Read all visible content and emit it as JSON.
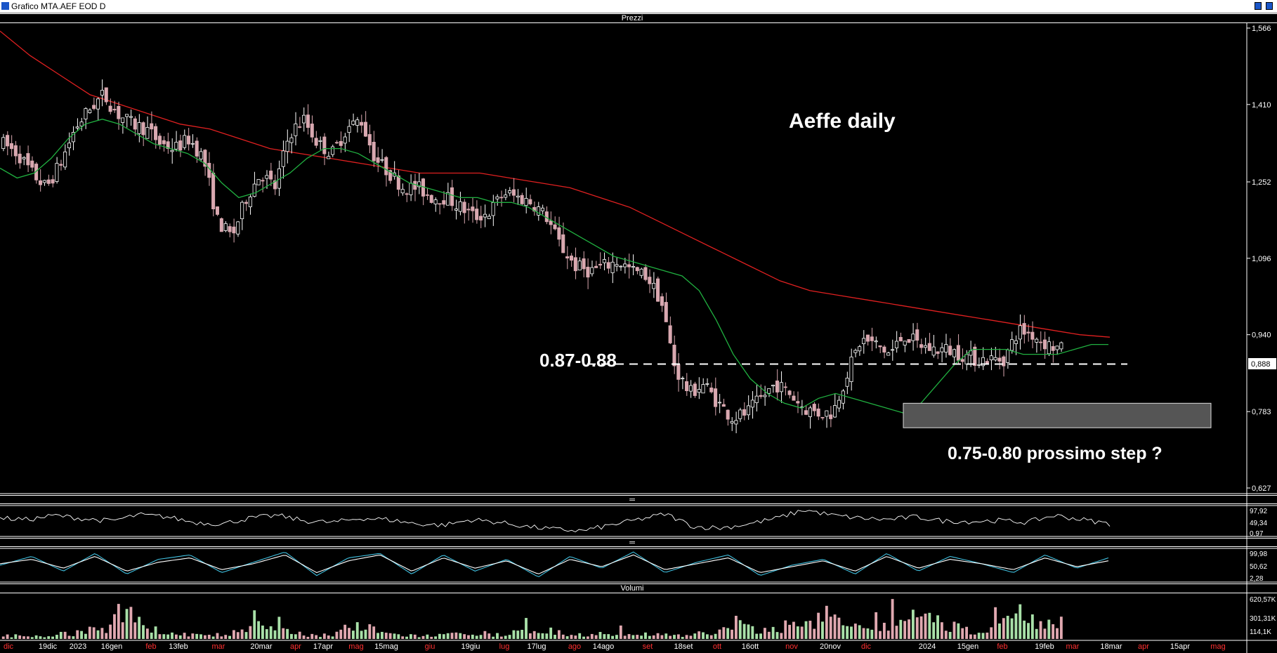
{
  "window": {
    "title": "Grafico MTA.AEF EOD D",
    "price_panel_label": "Prezzi",
    "osc1_label": "═",
    "osc2_label": "═",
    "volume_panel_label": "Volumi"
  },
  "colors": {
    "background": "#000000",
    "candle_up": "#ffffff",
    "candle_down": "#d9a8b0",
    "ma_long": "#e02020",
    "ma_short": "#20b040",
    "osc_line": "#ffffff",
    "stoch_k": "#40c0e0",
    "stoch_d": "#ffffff",
    "volume_up": "#a8e0a8",
    "volume_down": "#e0a8b0",
    "zone_fill": "#555555",
    "month_label": "#ff3030",
    "date_label": "#ffffff"
  },
  "chart_data": {
    "type": "candlestick",
    "title": "Aeffe daily",
    "y_ticks": [
      "1,566",
      "1,410",
      "1,252",
      "1,096",
      "0,940",
      "0,888",
      "0,783",
      "0,627"
    ],
    "ylim": [
      0.627,
      1.566
    ],
    "last_price_label": "0,888",
    "x_labels": [
      {
        "text": "dic",
        "kind": "month"
      },
      {
        "text": "19dic",
        "kind": "date"
      },
      {
        "text": "2023",
        "kind": "date"
      },
      {
        "text": "16gen",
        "kind": "date"
      },
      {
        "text": "feb",
        "kind": "month"
      },
      {
        "text": "13feb",
        "kind": "date"
      },
      {
        "text": "mar",
        "kind": "month"
      },
      {
        "text": "20mar",
        "kind": "date"
      },
      {
        "text": "apr",
        "kind": "month"
      },
      {
        "text": "17apr",
        "kind": "date"
      },
      {
        "text": "mag",
        "kind": "month"
      },
      {
        "text": "15mag",
        "kind": "date"
      },
      {
        "text": "giu",
        "kind": "month"
      },
      {
        "text": "19giu",
        "kind": "date"
      },
      {
        "text": "lug",
        "kind": "month"
      },
      {
        "text": "17lug",
        "kind": "date"
      },
      {
        "text": "ago",
        "kind": "month"
      },
      {
        "text": "14ago",
        "kind": "date"
      },
      {
        "text": "set",
        "kind": "month"
      },
      {
        "text": "18set",
        "kind": "date"
      },
      {
        "text": "ott",
        "kind": "month"
      },
      {
        "text": "16ott",
        "kind": "date"
      },
      {
        "text": "nov",
        "kind": "month"
      },
      {
        "text": "20nov",
        "kind": "date"
      },
      {
        "text": "dic",
        "kind": "month"
      },
      {
        "text": "2024",
        "kind": "date"
      },
      {
        "text": "15gen",
        "kind": "date"
      },
      {
        "text": "feb",
        "kind": "month"
      },
      {
        "text": "19feb",
        "kind": "date"
      },
      {
        "text": "mar",
        "kind": "month"
      },
      {
        "text": "18mar",
        "kind": "date"
      },
      {
        "text": "apr",
        "kind": "month"
      },
      {
        "text": "15apr",
        "kind": "date"
      },
      {
        "text": "mag",
        "kind": "month"
      }
    ],
    "price_path": [
      1.33,
      1.31,
      1.27,
      1.24,
      1.29,
      1.36,
      1.4,
      1.43,
      1.39,
      1.37,
      1.36,
      1.33,
      1.32,
      1.34,
      1.3,
      1.17,
      1.14,
      1.22,
      1.27,
      1.24,
      1.35,
      1.38,
      1.33,
      1.31,
      1.36,
      1.38,
      1.3,
      1.27,
      1.24,
      1.24,
      1.22,
      1.22,
      1.2,
      1.18,
      1.19,
      1.23,
      1.22,
      1.21,
      1.18,
      1.12,
      1.08,
      1.07,
      1.08,
      1.09,
      1.07,
      1.06,
      1.01,
      0.87,
      0.82,
      0.84,
      0.8,
      0.77,
      0.78,
      0.81,
      0.84,
      0.82,
      0.79,
      0.78,
      0.78,
      0.86,
      0.93,
      0.92,
      0.9,
      0.94,
      0.92,
      0.91,
      0.91,
      0.9,
      0.89,
      0.89,
      0.89,
      0.95,
      0.94,
      0.92,
      0.91
    ],
    "ma_short_path": [
      1.28,
      1.26,
      1.27,
      1.3,
      1.34,
      1.37,
      1.38,
      1.37,
      1.35,
      1.33,
      1.32,
      1.31,
      1.29,
      1.25,
      1.22,
      1.23,
      1.25,
      1.27,
      1.3,
      1.32,
      1.32,
      1.31,
      1.29,
      1.27,
      1.25,
      1.24,
      1.23,
      1.22,
      1.22,
      1.21,
      1.21,
      1.2,
      1.18,
      1.16,
      1.14,
      1.12,
      1.1,
      1.09,
      1.08,
      1.07,
      1.06,
      1.03,
      0.97,
      0.9,
      0.85,
      0.82,
      0.8,
      0.79,
      0.81,
      0.82,
      0.81,
      0.8,
      0.79,
      0.78,
      0.8,
      0.84,
      0.88,
      0.91,
      0.91,
      0.91,
      0.9,
      0.9,
      0.9,
      0.91,
      0.92,
      0.92
    ],
    "ma_long_path": [
      1.56,
      1.51,
      1.47,
      1.43,
      1.41,
      1.39,
      1.37,
      1.36,
      1.34,
      1.32,
      1.31,
      1.3,
      1.29,
      1.28,
      1.27,
      1.27,
      1.27,
      1.26,
      1.25,
      1.24,
      1.22,
      1.2,
      1.17,
      1.14,
      1.11,
      1.08,
      1.05,
      1.03,
      1.02,
      1.01,
      1.0,
      0.99,
      0.98,
      0.97,
      0.96,
      0.95,
      0.94,
      0.935
    ],
    "support_line": 0.88,
    "support_label": "0.87-0.88",
    "target_zone": [
      0.75,
      0.8
    ],
    "target_label": "0.75-0.80 prossimo step ?",
    "osc1_ticks": [
      "97,92",
      "49,34",
      "0,97"
    ],
    "osc1_path": [
      60,
      55,
      70,
      58,
      50,
      72,
      65,
      45,
      40,
      60,
      70,
      50,
      45,
      60,
      55,
      40,
      35,
      55,
      45,
      30,
      20,
      15,
      35,
      55,
      75,
      30,
      25,
      40,
      60,
      90,
      70,
      60,
      55,
      65,
      50,
      48,
      52,
      45,
      70,
      55,
      40
    ],
    "osc2_ticks": [
      "99,98",
      "50,62",
      "2,28"
    ],
    "osc2_k_path": [
      50,
      80,
      30,
      90,
      20,
      70,
      85,
      25,
      60,
      95,
      15,
      75,
      90,
      20,
      85,
      30,
      70,
      10,
      80,
      40,
      95,
      25,
      60,
      85,
      15,
      50,
      70,
      20,
      90,
      30,
      80,
      55,
      25,
      85,
      40,
      75
    ],
    "osc2_d_path": [
      55,
      70,
      40,
      80,
      30,
      60,
      75,
      35,
      55,
      85,
      25,
      65,
      85,
      30,
      75,
      40,
      65,
      20,
      70,
      45,
      85,
      35,
      55,
      75,
      25,
      45,
      65,
      30,
      80,
      40,
      70,
      55,
      35,
      75,
      45,
      65
    ],
    "volume_ticks": [
      "620,57K",
      "301,31K",
      "114,1K"
    ],
    "volume_values": [
      0.08,
      0.1,
      0.06,
      0.12,
      0.15,
      0.22,
      0.18,
      1.0,
      0.35,
      0.2,
      0.15,
      0.1,
      0.08,
      0.12,
      0.25,
      0.3,
      0.2,
      0.15,
      0.1,
      0.12,
      0.35,
      0.28,
      0.15,
      0.1,
      0.08,
      0.1,
      0.12,
      0.08,
      0.1,
      0.15,
      0.2,
      0.12,
      0.08,
      0.1,
      0.12,
      0.15,
      0.1,
      0.08,
      0.12,
      0.1,
      0.15,
      0.1,
      0.45,
      0.3,
      0.2,
      0.35,
      0.55,
      0.25,
      0.6,
      0.3,
      0.2,
      0.35,
      0.5,
      0.65,
      0.4,
      0.3,
      0.2,
      0.25,
      0.55,
      0.75,
      0.35,
      0.5
    ]
  }
}
